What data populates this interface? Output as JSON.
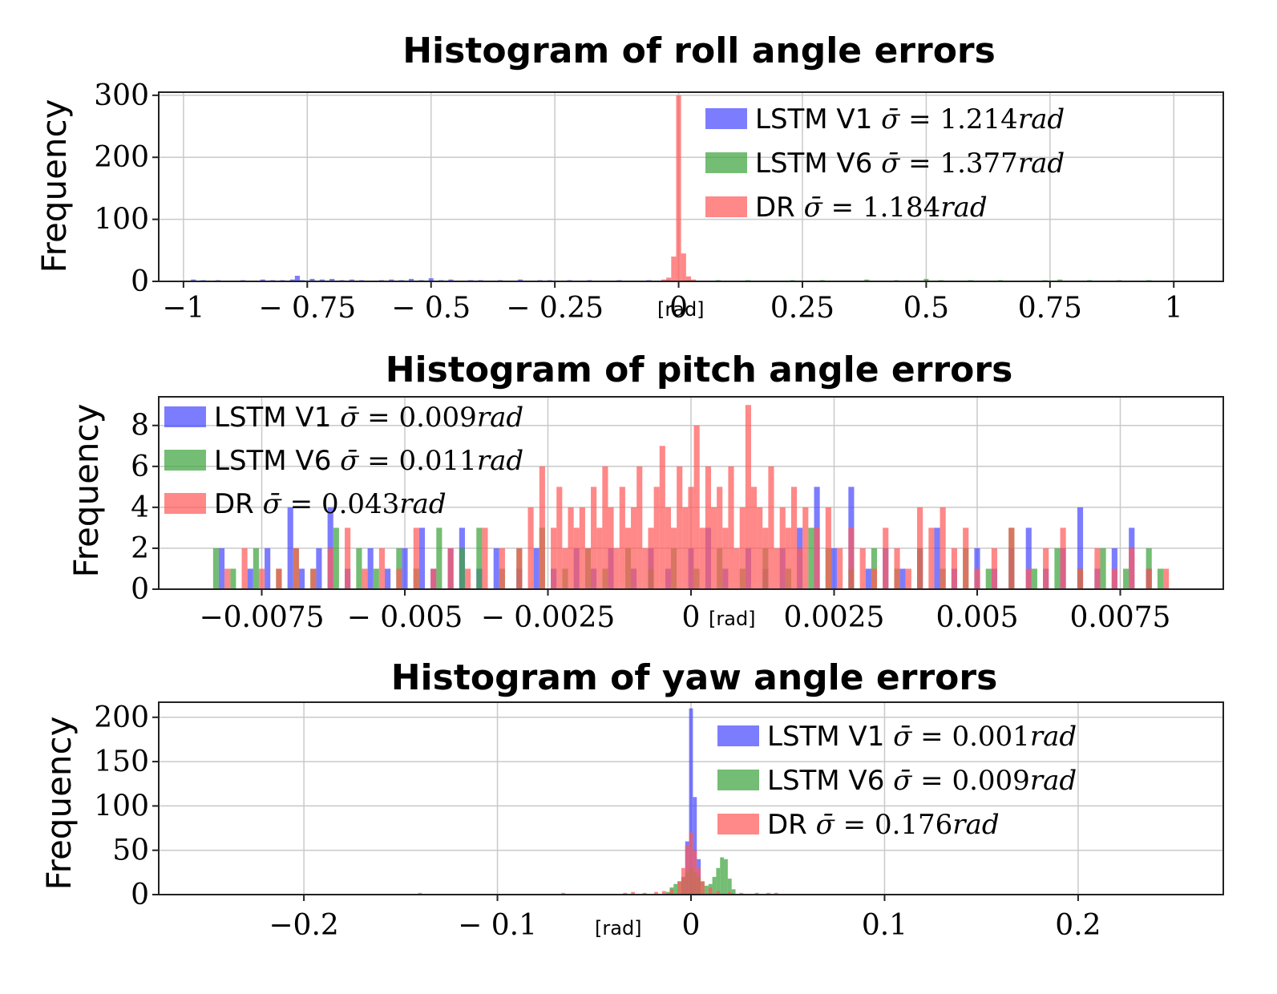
{
  "chart_data": [
    {
      "type": "histogram",
      "title": "Histogram of roll angle errors",
      "ylabel": "Frequency",
      "xlabel_unit": "[rad]",
      "xlim": [
        -1.05,
        1.1
      ],
      "ylim": [
        0,
        305
      ],
      "xticks": [
        -1,
        -0.75,
        -0.5,
        -0.25,
        0,
        0.25,
        0.5,
        0.75,
        1
      ],
      "xtick_labels": [
        "−1",
        "− 0.75",
        "− 0.5",
        "− 0.25",
        "0",
        "0.25",
        "0.5",
        "0.75",
        "1"
      ],
      "yticks": [
        0,
        100,
        200,
        300
      ],
      "ytick_labels": [
        "0",
        "100",
        "200",
        "300"
      ],
      "legend_position": "top-right",
      "bin_width": 0.01,
      "series": [
        {
          "name": "LSTM V1",
          "label": "LSTM V1 σ̄ = 1.214rad",
          "sigma": "1.214",
          "color": "#4a4aff",
          "x": [
            -0.98,
            -0.96,
            -0.93,
            -0.9,
            -0.88,
            -0.86,
            -0.84,
            -0.82,
            -0.8,
            -0.78,
            -0.77,
            -0.76,
            -0.74,
            -0.72,
            -0.7,
            -0.68,
            -0.66,
            -0.64,
            -0.62,
            -0.6,
            -0.58,
            -0.56,
            -0.54,
            -0.52,
            -0.5,
            -0.48,
            -0.46,
            -0.44,
            -0.42,
            -0.4,
            -0.38,
            -0.36,
            -0.34,
            -0.32,
            -0.3,
            -0.28,
            -0.26,
            -0.24,
            -0.22,
            -0.2,
            -0.18,
            -0.16,
            -0.14,
            -0.12,
            -0.1,
            -0.08,
            -0.06,
            -0.04,
            -0.02
          ],
          "values": [
            3,
            2,
            2,
            1,
            2,
            1,
            3,
            2,
            2,
            3,
            9,
            2,
            4,
            3,
            4,
            2,
            3,
            2,
            1,
            2,
            3,
            2,
            4,
            2,
            5,
            2,
            3,
            1,
            2,
            2,
            1,
            2,
            1,
            3,
            1,
            2,
            2,
            1,
            2,
            1,
            2,
            1,
            1,
            2,
            1,
            1,
            2,
            1,
            2
          ]
        },
        {
          "name": "LSTM V6",
          "label": "LSTM V6 σ̄ = 1.377rad",
          "sigma": "1.377",
          "color": "#3fa33f",
          "x": [
            0.02,
            0.05,
            0.08,
            0.11,
            0.14,
            0.17,
            0.2,
            0.23,
            0.26,
            0.29,
            0.32,
            0.35,
            0.38,
            0.41,
            0.44,
            0.47,
            0.5,
            0.53,
            0.56,
            0.59,
            0.62,
            0.65,
            0.68,
            0.71,
            0.74,
            0.77,
            0.8,
            0.83,
            0.86,
            0.89,
            0.92,
            0.95
          ],
          "values": [
            2,
            1,
            2,
            1,
            2,
            1,
            1,
            2,
            1,
            2,
            1,
            1,
            3,
            1,
            2,
            1,
            4,
            2,
            1,
            2,
            1,
            2,
            1,
            1,
            2,
            3,
            1,
            2,
            1,
            2,
            1,
            2
          ]
        },
        {
          "name": "DR",
          "label": "DR σ̄ = 1.184rad",
          "sigma": "1.184",
          "color": "#ff5a5a",
          "x": [
            -0.03,
            -0.02,
            -0.01,
            0,
            0.01,
            0.02,
            0.03
          ],
          "values": [
            3,
            6,
            40,
            300,
            45,
            8,
            3
          ]
        }
      ]
    },
    {
      "type": "histogram",
      "title": "Histogram of pitch angle errors",
      "ylabel": "Frequency",
      "xlabel_unit": "[rad]",
      "xlim": [
        -0.0093,
        0.0093
      ],
      "ylim": [
        0,
        9.4
      ],
      "xticks": [
        -0.0075,
        -0.005,
        -0.0025,
        0,
        0.0025,
        0.005,
        0.0075
      ],
      "xtick_labels": [
        "−0.0075",
        "− 0.005",
        "− 0.0025",
        "0",
        "0.0025",
        "0.005",
        "0.0075"
      ],
      "yticks": [
        0,
        2,
        4,
        6,
        8
      ],
      "ytick_labels": [
        "0",
        "2",
        "4",
        "6",
        "8"
      ],
      "legend_position": "top-left",
      "bin_width": 0.0001,
      "series": [
        {
          "name": "LSTM V1",
          "label": "LSTM V1 σ̄ = 0.009rad",
          "sigma": "0.009",
          "color": "#4a4aff",
          "x": [
            -0.0082,
            -0.0077,
            -0.0074,
            -0.007,
            -0.0068,
            -0.0065,
            -0.0063,
            -0.006,
            -0.0056,
            -0.0053,
            -0.005,
            -0.0047,
            -0.0045,
            -0.0042,
            -0.004,
            -0.0037,
            -0.0034,
            -0.003,
            -0.0027,
            -0.0024,
            -0.002,
            -0.0017,
            -0.0014,
            -0.001,
            -0.0007,
            -0.0004,
            0,
            0.0003,
            0.0006,
            0.001,
            0.0013,
            0.0016,
            0.0019,
            0.0022,
            0.0025,
            0.0028,
            0.0031,
            0.0034,
            0.0037,
            0.004,
            0.0043,
            0.0046,
            0.005,
            0.0053,
            0.0056,
            0.0059,
            0.0062,
            0.0065,
            0.0068,
            0.0071,
            0.0074,
            0.0077,
            0.008
          ],
          "values": [
            2,
            1,
            2,
            4,
            1,
            2,
            4,
            1,
            2,
            1,
            2,
            3,
            1,
            2,
            3,
            1,
            2,
            1,
            2,
            1,
            2,
            1,
            2,
            1,
            2,
            1,
            2,
            3,
            1,
            2,
            1,
            2,
            3,
            5,
            2,
            5,
            1,
            2,
            1,
            2,
            3,
            1,
            2,
            1,
            2,
            3,
            1,
            2,
            4,
            1,
            2,
            3,
            1
          ]
        },
        {
          "name": "LSTM V6",
          "label": "LSTM V6 σ̄ = 0.011rad",
          "sigma": "0.011",
          "color": "#3fa33f",
          "x": [
            -0.0083,
            -0.008,
            -0.0076,
            -0.0072,
            -0.0069,
            -0.0066,
            -0.0062,
            -0.0058,
            -0.0055,
            -0.0051,
            -0.0048,
            -0.0044,
            -0.004,
            -0.0037,
            -0.0033,
            -0.003,
            -0.0026,
            -0.0022,
            -0.0018,
            -0.0015,
            -0.0011,
            -0.0007,
            -0.0003,
            0.0001,
            0.0005,
            0.0009,
            0.0013,
            0.0017,
            0.0021,
            0.0024,
            0.0028,
            0.0032,
            0.0036,
            0.004,
            0.0044,
            0.0048,
            0.0052,
            0.0056,
            0.006,
            0.0064,
            0.0068,
            0.0072,
            0.0076,
            0.008,
            0.0082
          ],
          "values": [
            2,
            1,
            2,
            1,
            2,
            1,
            3,
            2,
            1,
            2,
            1,
            3,
            2,
            3,
            1,
            2,
            3,
            1,
            2,
            1,
            2,
            1,
            2,
            1,
            2,
            1,
            2,
            1,
            3,
            2,
            1,
            2,
            1,
            2,
            1,
            2,
            1,
            3,
            1,
            2,
            1,
            2,
            1,
            2,
            1
          ]
        },
        {
          "name": "DR",
          "label": "DR σ̄ = 0.043rad",
          "sigma": "0.043",
          "color": "#ff5a5a",
          "x": [
            -0.0081,
            -0.0078,
            -0.0075,
            -0.0072,
            -0.0069,
            -0.0066,
            -0.0063,
            -0.006,
            -0.0057,
            -0.0054,
            -0.0051,
            -0.0048,
            -0.0045,
            -0.0042,
            -0.0039,
            -0.0036,
            -0.0033,
            -0.003,
            -0.0028,
            -0.0026,
            -0.0024,
            -0.0023,
            -0.0022,
            -0.0021,
            -0.002,
            -0.0019,
            -0.0018,
            -0.0017,
            -0.0016,
            -0.0015,
            -0.0014,
            -0.0013,
            -0.0012,
            -0.0011,
            -0.001,
            -0.0009,
            -0.0008,
            -0.0007,
            -0.0006,
            -0.0005,
            -0.0004,
            -0.0003,
            -0.0002,
            -0.0001,
            0,
            0.0001,
            0.0002,
            0.0003,
            0.0004,
            0.0005,
            0.0006,
            0.0007,
            0.0008,
            0.0009,
            0.001,
            0.0011,
            0.0012,
            0.0013,
            0.0014,
            0.0015,
            0.0016,
            0.0017,
            0.0018,
            0.0019,
            0.002,
            0.0022,
            0.0024,
            0.0026,
            0.0028,
            0.003,
            0.0032,
            0.0034,
            0.0036,
            0.0038,
            0.004,
            0.0042,
            0.0044,
            0.0046,
            0.0048,
            0.005,
            0.0053,
            0.0056,
            0.0059,
            0.0062,
            0.0065,
            0.0068,
            0.0071,
            0.0074,
            0.0077,
            0.008,
            0.0083
          ],
          "values": [
            1,
            2,
            1,
            1,
            2,
            1,
            2,
            3,
            1,
            2,
            1,
            3,
            1,
            2,
            1,
            3,
            2,
            2,
            4,
            6,
            3,
            5,
            2,
            4,
            3,
            4,
            2,
            5,
            3,
            6,
            4,
            2,
            5,
            3,
            4,
            6,
            2,
            3,
            5,
            7,
            4,
            3,
            6,
            4,
            5,
            8,
            3,
            6,
            4,
            5,
            3,
            6,
            2,
            4,
            9,
            5,
            4,
            3,
            6,
            2,
            4,
            3,
            5,
            2,
            4,
            3,
            4,
            2,
            3,
            2,
            1,
            3,
            2,
            1,
            4,
            3,
            4,
            2,
            3,
            1,
            2,
            3,
            1,
            2,
            3,
            1,
            2,
            1,
            2,
            1,
            1
          ]
        }
      ]
    },
    {
      "type": "histogram",
      "title": "Histogram of yaw angle errors",
      "ylabel": "Frequency",
      "xlabel_unit": "[rad]",
      "xlim": [
        -0.275,
        0.275
      ],
      "ylim": [
        0,
        217
      ],
      "xticks": [
        -0.2,
        -0.1,
        0,
        0.1,
        0.2
      ],
      "xtick_labels": [
        "−0.2",
        "− 0.1",
        "0",
        "0.1",
        "0.2"
      ],
      "yticks": [
        0,
        50,
        100,
        150,
        200
      ],
      "ytick_labels": [
        "0",
        "50",
        "100",
        "150",
        "200"
      ],
      "legend_position": "top-right",
      "bin_width": 0.002,
      "series": [
        {
          "name": "LSTM V1",
          "label": "LSTM V1 σ̄ = 0.001rad",
          "sigma": "0.001",
          "color": "#4a4aff",
          "x": [
            -0.004,
            -0.002,
            0,
            0.002,
            0.004
          ],
          "values": [
            20,
            60,
            210,
            110,
            40
          ]
        },
        {
          "name": "LSTM V6",
          "label": "LSTM V6 σ̄ = 0.009rad",
          "sigma": "0.009",
          "color": "#3fa33f",
          "x": [
            -0.012,
            -0.01,
            -0.008,
            -0.006,
            -0.004,
            -0.002,
            0,
            0.002,
            0.004,
            0.006,
            0.008,
            0.01,
            0.012,
            0.014,
            0.016,
            0.018,
            0.02,
            0.022
          ],
          "values": [
            3,
            8,
            12,
            15,
            18,
            25,
            30,
            25,
            20,
            15,
            10,
            12,
            20,
            30,
            42,
            40,
            18,
            6
          ]
        },
        {
          "name": "DR",
          "label": "DR σ̄ = 0.176rad",
          "sigma": "0.176",
          "color": "#ff5a5a",
          "x": [
            -0.14,
            -0.066,
            -0.034,
            -0.03,
            -0.024,
            -0.018,
            -0.014,
            -0.01,
            -0.006,
            -0.004,
            -0.002,
            0,
            0.002,
            0.004,
            0.006,
            0.01,
            0.014,
            0.02,
            0.026,
            0.034,
            0.04,
            0.044
          ],
          "values": [
            2,
            2,
            2,
            3,
            2,
            3,
            4,
            6,
            15,
            30,
            55,
            70,
            50,
            30,
            15,
            8,
            4,
            3,
            2,
            2,
            2,
            2
          ]
        }
      ]
    }
  ]
}
